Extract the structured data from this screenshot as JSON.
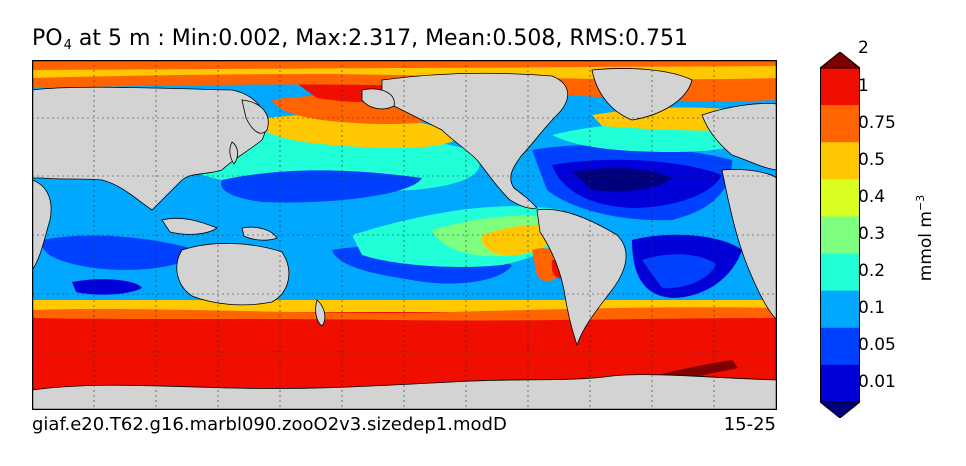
{
  "title": {
    "variable": "PO",
    "subscript": "4",
    "rest": " at 5 m : Min:0.002, Max:2.317, Mean:0.508, RMS:0.751"
  },
  "footer": {
    "case_name": "giaf.e20.T62.g16.marbl090.zooO2v3.sizedep1.modD",
    "years": "15-25"
  },
  "colorbar": {
    "units_text": "mmol m",
    "units_exponent": "−3",
    "levels": [
      "0.01",
      "0.05",
      "0.1",
      "0.2",
      "0.3",
      "0.4",
      "0.5",
      "0.75",
      "1",
      "2"
    ],
    "colors": [
      "#00007f",
      "#0000d8",
      "#0040ff",
      "#00a8ff",
      "#20ffd8",
      "#7fff7f",
      "#d8ff20",
      "#ffc800",
      "#ff6400",
      "#ef0e00",
      "#7f0000"
    ]
  },
  "map": {
    "land_color": "#d3d3d3",
    "grid": true
  }
}
